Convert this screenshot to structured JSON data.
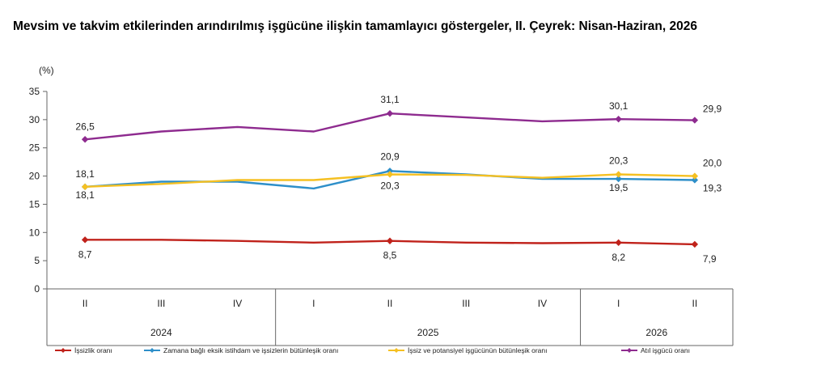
{
  "title": "Mevsim ve takvim etkilerinden arındırılmış işgücüne ilişkin tamamlayıcı göstergeler, II. Çeyrek: Nisan-Haziran, 2026",
  "chart_data": {
    "type": "line",
    "ylabel": "(%)",
    "ylim": [
      0,
      35
    ],
    "yticks": [
      "0",
      "5",
      "10",
      "15",
      "20",
      "25",
      "30",
      "35"
    ],
    "x": [
      "II",
      "III",
      "IV",
      "I",
      "II",
      "III",
      "IV",
      "I",
      "II"
    ],
    "year_groups": [
      {
        "label": "2024",
        "span": [
          0,
          2
        ]
      },
      {
        "label": "2025",
        "span": [
          3,
          6
        ]
      },
      {
        "label": "2026",
        "span": [
          7,
          8
        ]
      }
    ],
    "grid": false,
    "legend_position": "bottom",
    "series": [
      {
        "name": "İşsizlik oranı",
        "color": "#c0221b",
        "values": [
          8.7,
          8.7,
          8.5,
          8.2,
          8.5,
          8.2,
          8.1,
          8.2,
          7.9
        ],
        "labels": {
          "0": "8,7",
          "4": "8,5",
          "7": "8,2",
          "8": "7,9"
        }
      },
      {
        "name": "Zamana bağlı eksik istihdam ve işsizlerin bütünleşik oranı",
        "color": "#2e8fc9",
        "values": [
          18.1,
          19.0,
          19.0,
          17.8,
          20.9,
          20.3,
          19.5,
          19.5,
          19.3
        ],
        "labels": {
          "0": "18,1",
          "4": "20,9",
          "7": "19,5",
          "8": "19,3"
        }
      },
      {
        "name": "İşsiz ve potansiyel işgücünün bütünleşik oranı",
        "color": "#f5c022",
        "values": [
          18.1,
          18.6,
          19.3,
          19.3,
          20.3,
          20.2,
          19.7,
          20.3,
          20.0
        ],
        "labels": {
          "0": "18,1",
          "4": "20,3",
          "7": "20,3",
          "8": "20,0"
        }
      },
      {
        "name": "Atıl işgücü oranı",
        "color": "#8e2b8f",
        "values": [
          26.5,
          27.9,
          28.7,
          27.9,
          31.1,
          30.4,
          29.7,
          30.1,
          29.9
        ],
        "labels": {
          "0": "26,5",
          "4": "31,1",
          "7": "30,1",
          "8": "29,9"
        }
      }
    ]
  }
}
